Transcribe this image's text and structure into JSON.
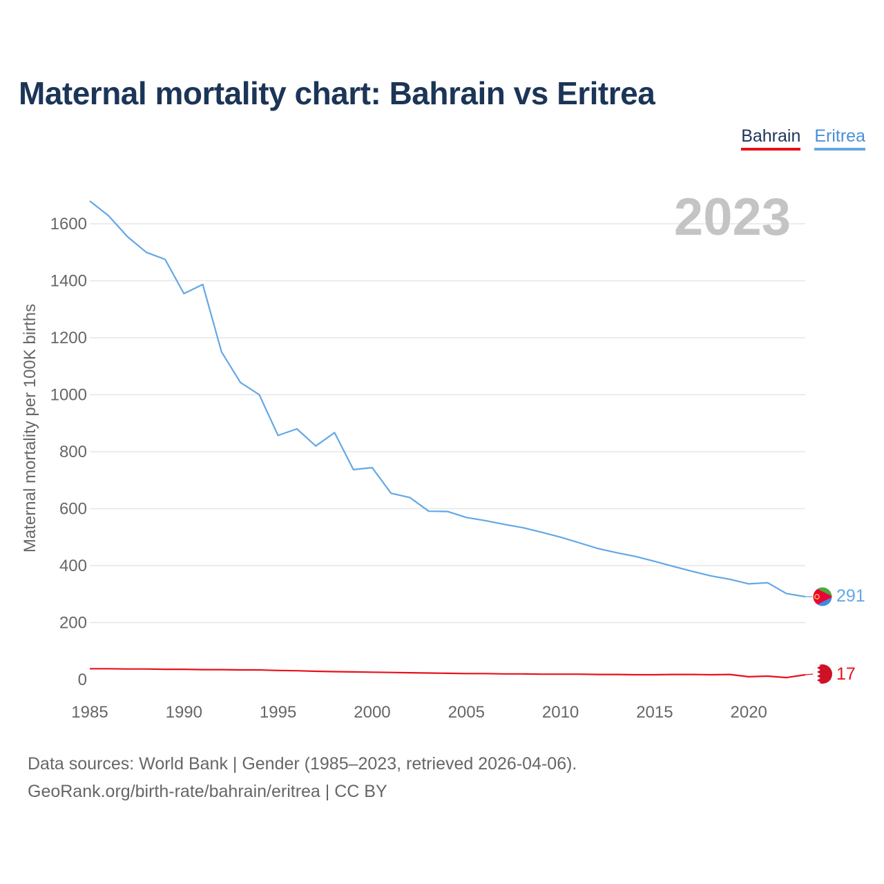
{
  "title": "Maternal mortality chart: Bahrain vs Eritrea",
  "legend": {
    "bahrain": "Bahrain",
    "eritrea": "Eritrea"
  },
  "footer": {
    "line1": "Data sources: World Bank | Gender (1985–2023, retrieved 2026-04-06).",
    "line2": "GeoRank.org/birth-rate/bahrain/eritrea | CC BY"
  },
  "colors": {
    "bahrain": "#e8101a",
    "eritrea": "#62a7e6",
    "title": "#1c3557",
    "grid": "#e6e6e6",
    "tick": "#666666",
    "year_watermark": "#c4c4c4"
  },
  "chart_data": {
    "type": "line",
    "title": "Maternal mortality chart: Bahrain vs Eritrea",
    "year_label": "2023",
    "xlabel": "",
    "ylabel": "Maternal mortality per 100K births",
    "xlim": [
      1985,
      2023
    ],
    "ylim": [
      0,
      1700
    ],
    "x_ticks": [
      1985,
      1990,
      1995,
      2000,
      2005,
      2010,
      2015,
      2020
    ],
    "y_ticks": [
      0,
      200,
      400,
      600,
      800,
      1000,
      1200,
      1400,
      1600
    ],
    "grid": true,
    "legend_position": "top-right",
    "x": [
      1985,
      1986,
      1987,
      1988,
      1989,
      1990,
      1991,
      1992,
      1993,
      1994,
      1995,
      1996,
      1997,
      1998,
      1999,
      2000,
      2001,
      2002,
      2003,
      2004,
      2005,
      2006,
      2007,
      2008,
      2009,
      2010,
      2011,
      2012,
      2013,
      2014,
      2015,
      2016,
      2017,
      2018,
      2019,
      2020,
      2021,
      2022,
      2023
    ],
    "series": [
      {
        "name": "Bahrain",
        "color": "#e8101a",
        "end_label": "17",
        "values": [
          38,
          38,
          37,
          37,
          36,
          36,
          35,
          35,
          34,
          34,
          32,
          31,
          29,
          28,
          27,
          26,
          25,
          24,
          23,
          22,
          21,
          21,
          20,
          20,
          19,
          19,
          19,
          18,
          18,
          17,
          17,
          18,
          18,
          17,
          18,
          10,
          12,
          7,
          17
        ]
      },
      {
        "name": "Eritrea",
        "color": "#62a7e6",
        "end_label": "291",
        "values": [
          1680,
          1628,
          1555,
          1500,
          1475,
          1355,
          1387,
          1150,
          1043,
          1000,
          857,
          880,
          820,
          867,
          737,
          744,
          654,
          639,
          591,
          590,
          569,
          558,
          545,
          533,
          517,
          500,
          480,
          460,
          445,
          432,
          415,
          397,
          380,
          364,
          352,
          336,
          340,
          302,
          291
        ]
      }
    ]
  }
}
